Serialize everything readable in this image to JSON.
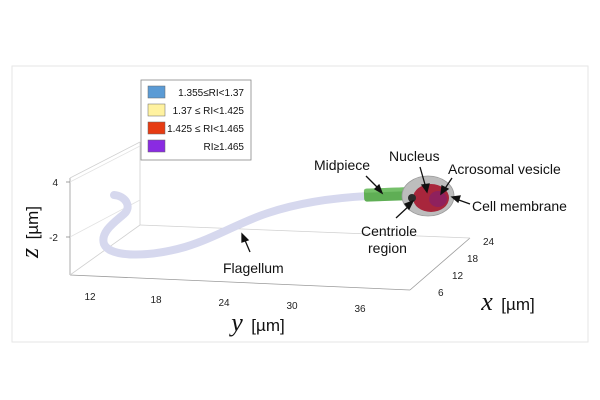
{
  "legend": {
    "items": [
      {
        "label": "1.355≤RI<1.37",
        "color": "#5b9bd5"
      },
      {
        "label": "1.37 ≤ RI<1.425",
        "color": "#fff2a0"
      },
      {
        "label": "1.425 ≤ RI<1.465",
        "color": "#e63b12"
      },
      {
        "label": "RI≥1.465",
        "color": "#8a2be2"
      }
    ]
  },
  "axes": {
    "z": {
      "name": "z",
      "unit": "[µm]",
      "ticks": [
        "4",
        "-2"
      ]
    },
    "y": {
      "name": "y",
      "unit": "[µm]",
      "ticks": [
        "12",
        "18",
        "24",
        "30",
        "36"
      ]
    },
    "x": {
      "name": "x",
      "unit": "[µm]",
      "ticks": [
        "24",
        "18",
        "12",
        "6"
      ]
    }
  },
  "annotations": {
    "midpiece": "Midpiece",
    "nucleus": "Nucleus",
    "acrosomal_vesicle": "Acrosomal vesicle",
    "cell_membrane": "Cell membrane",
    "centriole_line1": "Centriole",
    "centriole_line2": "region",
    "flagellum": "Flagellum"
  },
  "colors": {
    "flagellum": "#d6d8ee",
    "midpiece": "#5fae55",
    "head": "#b8b8b8",
    "nucleus": "#a8263c"
  }
}
